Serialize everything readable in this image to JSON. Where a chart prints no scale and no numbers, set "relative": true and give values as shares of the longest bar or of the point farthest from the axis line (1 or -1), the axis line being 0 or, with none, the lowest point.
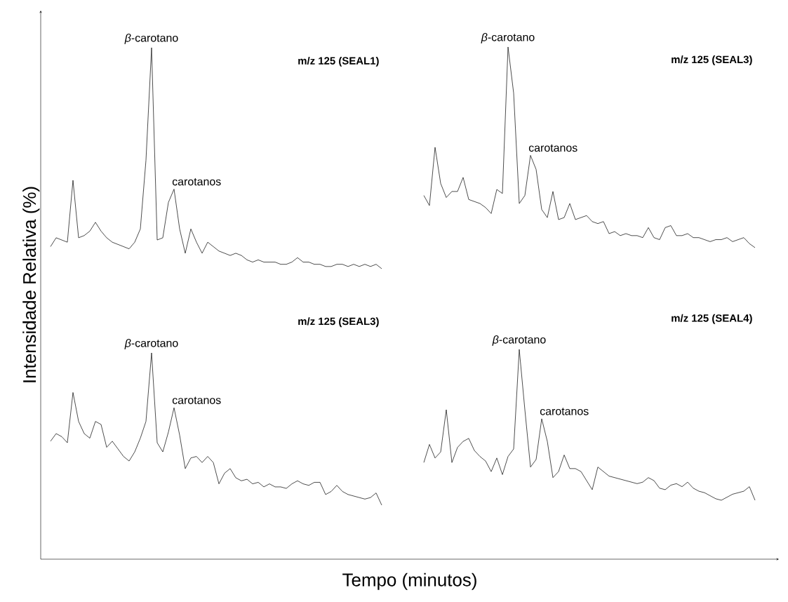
{
  "chart_data": [
    {
      "type": "other",
      "xlabel": "Tempo (minutos)",
      "ylabel": "Intensidade Relativa (%)"
    },
    {
      "type": "line",
      "relative": true,
      "legend": false,
      "marker": "none",
      "line_style": "solid",
      "categories": [
        null,
        null,
        null,
        null,
        null,
        null,
        null,
        null,
        null,
        null,
        null,
        null,
        null,
        null,
        null,
        null,
        null,
        null,
        null,
        null,
        null,
        null,
        null,
        null,
        null,
        null,
        null,
        null,
        null,
        null,
        null,
        null,
        null,
        null,
        null,
        null,
        null,
        null,
        null,
        null,
        null,
        null,
        null,
        null,
        null,
        null,
        null,
        null,
        null,
        null,
        null,
        null,
        null,
        null,
        null,
        null,
        null,
        null,
        null,
        null
      ],
      "series": [
        {
          "name": "m/z 125 (SEAL1)",
          "color": "#000000",
          "values": [
            0.1,
            0.14,
            0.13,
            0.12,
            0.4,
            0.14,
            0.15,
            0.17,
            0.21,
            0.17,
            0.14,
            0.12,
            0.11,
            0.1,
            0.09,
            0.12,
            0.18,
            0.49,
            1.0,
            0.13,
            0.14,
            0.3,
            0.36,
            0.18,
            0.07,
            0.18,
            0.12,
            0.07,
            0.12,
            0.1,
            0.08,
            0.07,
            0.06,
            0.07,
            0.06,
            0.04,
            0.03,
            0.04,
            0.03,
            0.03,
            0.03,
            0.02,
            0.02,
            0.03,
            0.05,
            0.03,
            0.03,
            0.02,
            0.02,
            0.01,
            0.01,
            0.02,
            0.02,
            0.01,
            0.02,
            0.01,
            0.02,
            0.01,
            0.02,
            0
          ]
        }
      ],
      "annotations": [
        "*β*-carotano",
        "carotanos"
      ]
    },
    {
      "type": "line",
      "relative": true,
      "legend": false,
      "marker": "none",
      "line_style": "solid",
      "categories": [
        null,
        null,
        null,
        null,
        null,
        null,
        null,
        null,
        null,
        null,
        null,
        null,
        null,
        null,
        null,
        null,
        null,
        null,
        null,
        null,
        null,
        null,
        null,
        null,
        null,
        null,
        null,
        null,
        null,
        null,
        null,
        null,
        null,
        null,
        null,
        null,
        null,
        null,
        null,
        null,
        null,
        null,
        null,
        null,
        null,
        null,
        null,
        null,
        null,
        null,
        null,
        null,
        null,
        null,
        null,
        null,
        null,
        null,
        null,
        null
      ],
      "series": [
        {
          "name": "m/z 125 (SEAL3)",
          "color": "#000000",
          "values": [
            0.26,
            0.21,
            0.5,
            0.32,
            0.25,
            0.28,
            0.28,
            0.35,
            0.24,
            0.23,
            0.22,
            0.2,
            0.17,
            0.29,
            0.27,
            1.0,
            0.77,
            0.22,
            0.26,
            0.46,
            0.39,
            0.19,
            0.15,
            0.28,
            0.14,
            0.15,
            0.22,
            0.14,
            0.15,
            0.16,
            0.13,
            0.12,
            0.13,
            0.07,
            0.08,
            0.06,
            0.07,
            0.06,
            0.06,
            0.05,
            0.1,
            0.05,
            0.04,
            0.1,
            0.11,
            0.06,
            0.06,
            0.07,
            0.05,
            0.05,
            0.04,
            0.03,
            0.04,
            0.04,
            0.05,
            0.03,
            0.04,
            0.05,
            0.02,
            0
          ]
        }
      ],
      "annotations": [
        "*β*-carotano",
        "carotanos"
      ]
    },
    {
      "type": "line",
      "relative": true,
      "legend": false,
      "marker": "none",
      "line_style": "solid",
      "categories": [
        null,
        null,
        null,
        null,
        null,
        null,
        null,
        null,
        null,
        null,
        null,
        null,
        null,
        null,
        null,
        null,
        null,
        null,
        null,
        null,
        null,
        null,
        null,
        null,
        null,
        null,
        null,
        null,
        null,
        null,
        null,
        null,
        null,
        null,
        null,
        null,
        null,
        null,
        null,
        null,
        null,
        null,
        null,
        null,
        null,
        null,
        null,
        null,
        null,
        null,
        null,
        null,
        null,
        null,
        null,
        null,
        null,
        null,
        null,
        null
      ],
      "series": [
        {
          "name": "m/z 125 (SEAL3)",
          "color": "#000000",
          "values": [
            0.42,
            0.47,
            0.45,
            0.41,
            0.74,
            0.55,
            0.47,
            0.44,
            0.55,
            0.53,
            0.38,
            0.42,
            0.37,
            0.32,
            0.29,
            0.35,
            0.44,
            0.55,
            1.0,
            0.41,
            0.35,
            0.48,
            0.64,
            0.46,
            0.24,
            0.31,
            0.32,
            0.28,
            0.32,
            0.28,
            0.14,
            0.21,
            0.24,
            0.18,
            0.16,
            0.17,
            0.14,
            0.15,
            0.12,
            0.14,
            0.12,
            0.12,
            0.11,
            0.14,
            0.16,
            0.14,
            0.13,
            0.15,
            0.15,
            0.07,
            0.09,
            0.13,
            0.09,
            0.07,
            0.06,
            0.05,
            0.04,
            0.05,
            0.08,
            0
          ]
        }
      ],
      "annotations": [
        "*β*-carotano",
        "carotanos"
      ]
    },
    {
      "type": "line",
      "relative": true,
      "legend": false,
      "marker": "none",
      "line_style": "solid",
      "categories": [
        null,
        null,
        null,
        null,
        null,
        null,
        null,
        null,
        null,
        null,
        null,
        null,
        null,
        null,
        null,
        null,
        null,
        null,
        null,
        null,
        null,
        null,
        null,
        null,
        null,
        null,
        null,
        null,
        null,
        null,
        null,
        null,
        null,
        null,
        null,
        null,
        null,
        null,
        null,
        null,
        null,
        null,
        null,
        null,
        null,
        null,
        null,
        null,
        null,
        null,
        null,
        null,
        null,
        null,
        null,
        null,
        null,
        null,
        null,
        null
      ],
      "series": [
        {
          "name": "m/z 125 (SEAL4)",
          "color": "#000000",
          "values": [
            0.25,
            0.37,
            0.28,
            0.32,
            0.6,
            0.25,
            0.35,
            0.39,
            0.41,
            0.33,
            0.29,
            0.26,
            0.19,
            0.28,
            0.17,
            0.29,
            0.34,
            1.0,
            0.6,
            0.22,
            0.27,
            0.54,
            0.39,
            0.15,
            0.19,
            0.3,
            0.21,
            0.21,
            0.19,
            0.13,
            0.07,
            0.22,
            0.19,
            0.16,
            0.15,
            0.14,
            0.13,
            0.12,
            0.11,
            0.12,
            0.15,
            0.13,
            0.08,
            0.07,
            0.1,
            0.11,
            0.09,
            0.12,
            0.08,
            0.06,
            0.05,
            0.03,
            0.01,
            0,
            0.02,
            0.04,
            0.05,
            0.06,
            0.09,
            0
          ]
        }
      ],
      "annotations": [
        "*β*-carotano",
        "carotanos"
      ]
    }
  ]
}
